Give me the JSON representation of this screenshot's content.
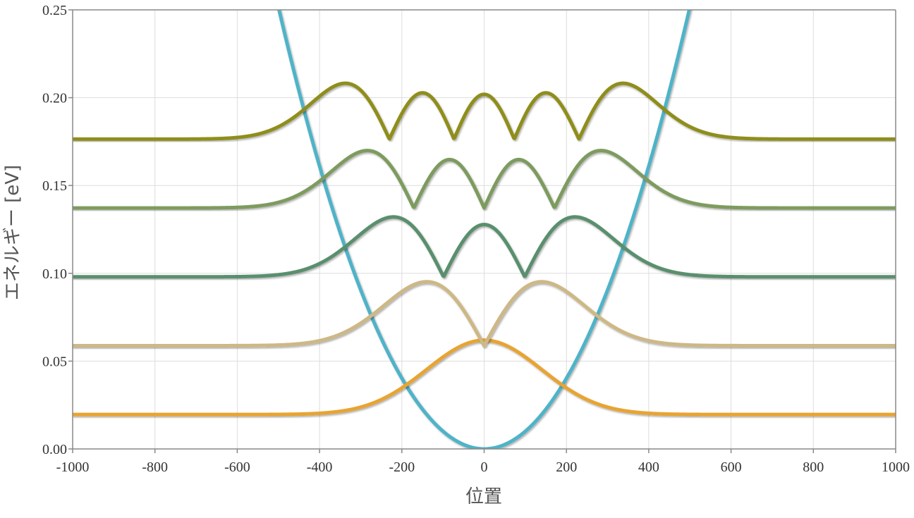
{
  "chart_data": {
    "type": "line",
    "title": "",
    "xlabel": "位置",
    "ylabel": "エネルギー [eV]",
    "xlim": [
      -1000,
      1000
    ],
    "ylim": [
      0,
      0.25
    ],
    "x_ticks": [
      -1000,
      -800,
      -600,
      -400,
      -200,
      0,
      200,
      400,
      600,
      800,
      1000
    ],
    "x_tick_labels": [
      "-1000",
      "-800",
      "-600",
      "-400",
      "-200",
      "0",
      "200",
      "400",
      "600",
      "800",
      "1000"
    ],
    "y_ticks": [
      0,
      0.05,
      0.1,
      0.15,
      0.2,
      0.25
    ],
    "y_tick_labels": [
      "0.00",
      "0.05",
      "0.10",
      "0.15",
      "0.20",
      "0.25"
    ],
    "grid": true,
    "legend": "none",
    "potential": {
      "shape": "parabola",
      "color": "#4fb3c8",
      "points": [
        [
          -500,
          0.2516
        ],
        [
          -400,
          0.161
        ],
        [
          -300,
          0.0906
        ],
        [
          -200,
          0.0403
        ],
        [
          -100,
          0.0101
        ],
        [
          0,
          0
        ],
        [
          100,
          0.0101
        ],
        [
          200,
          0.0403
        ],
        [
          300,
          0.0906
        ],
        [
          400,
          0.161
        ],
        [
          500,
          0.2516
        ]
      ]
    },
    "series": [
      {
        "quantum_number": 0,
        "energy": 0.0196,
        "amplitude": 0.0423,
        "color": "#e8a430",
        "peaks": [
          [
            0,
            0.062
          ]
        ]
      },
      {
        "quantum_number": 1,
        "energy": 0.0588,
        "amplitude": 0.0364,
        "color": "#cdb886",
        "peaks": [
          [
            -140,
            0.095
          ],
          [
            140,
            0.095
          ]
        ],
        "nodes": [
          0
        ]
      },
      {
        "quantum_number": 2,
        "energy": 0.098,
        "amplitude": 0.0341,
        "color": "#5a8f6e",
        "peaks": [
          [
            -225,
            0.132
          ],
          [
            0,
            0.128
          ],
          [
            225,
            0.132
          ]
        ],
        "nodes": [
          -100,
          100
        ]
      },
      {
        "quantum_number": 3,
        "energy": 0.1372,
        "amplitude": 0.0327,
        "color": "#7e9b5e",
        "peaks": [
          [
            -285,
            0.17
          ],
          [
            -85,
            0.165
          ],
          [
            85,
            0.165
          ],
          [
            285,
            0.17
          ]
        ],
        "nodes": [
          -175,
          0,
          175
        ]
      },
      {
        "quantum_number": 4,
        "energy": 0.1764,
        "amplitude": 0.0318,
        "color": "#8f8e1a",
        "peaks": [
          [
            -335,
            0.208
          ],
          [
            -150,
            0.203
          ],
          [
            0,
            0.202
          ],
          [
            150,
            0.203
          ],
          [
            335,
            0.208
          ]
        ],
        "nodes": [
          -232,
          -75,
          75,
          232
        ]
      }
    ]
  }
}
